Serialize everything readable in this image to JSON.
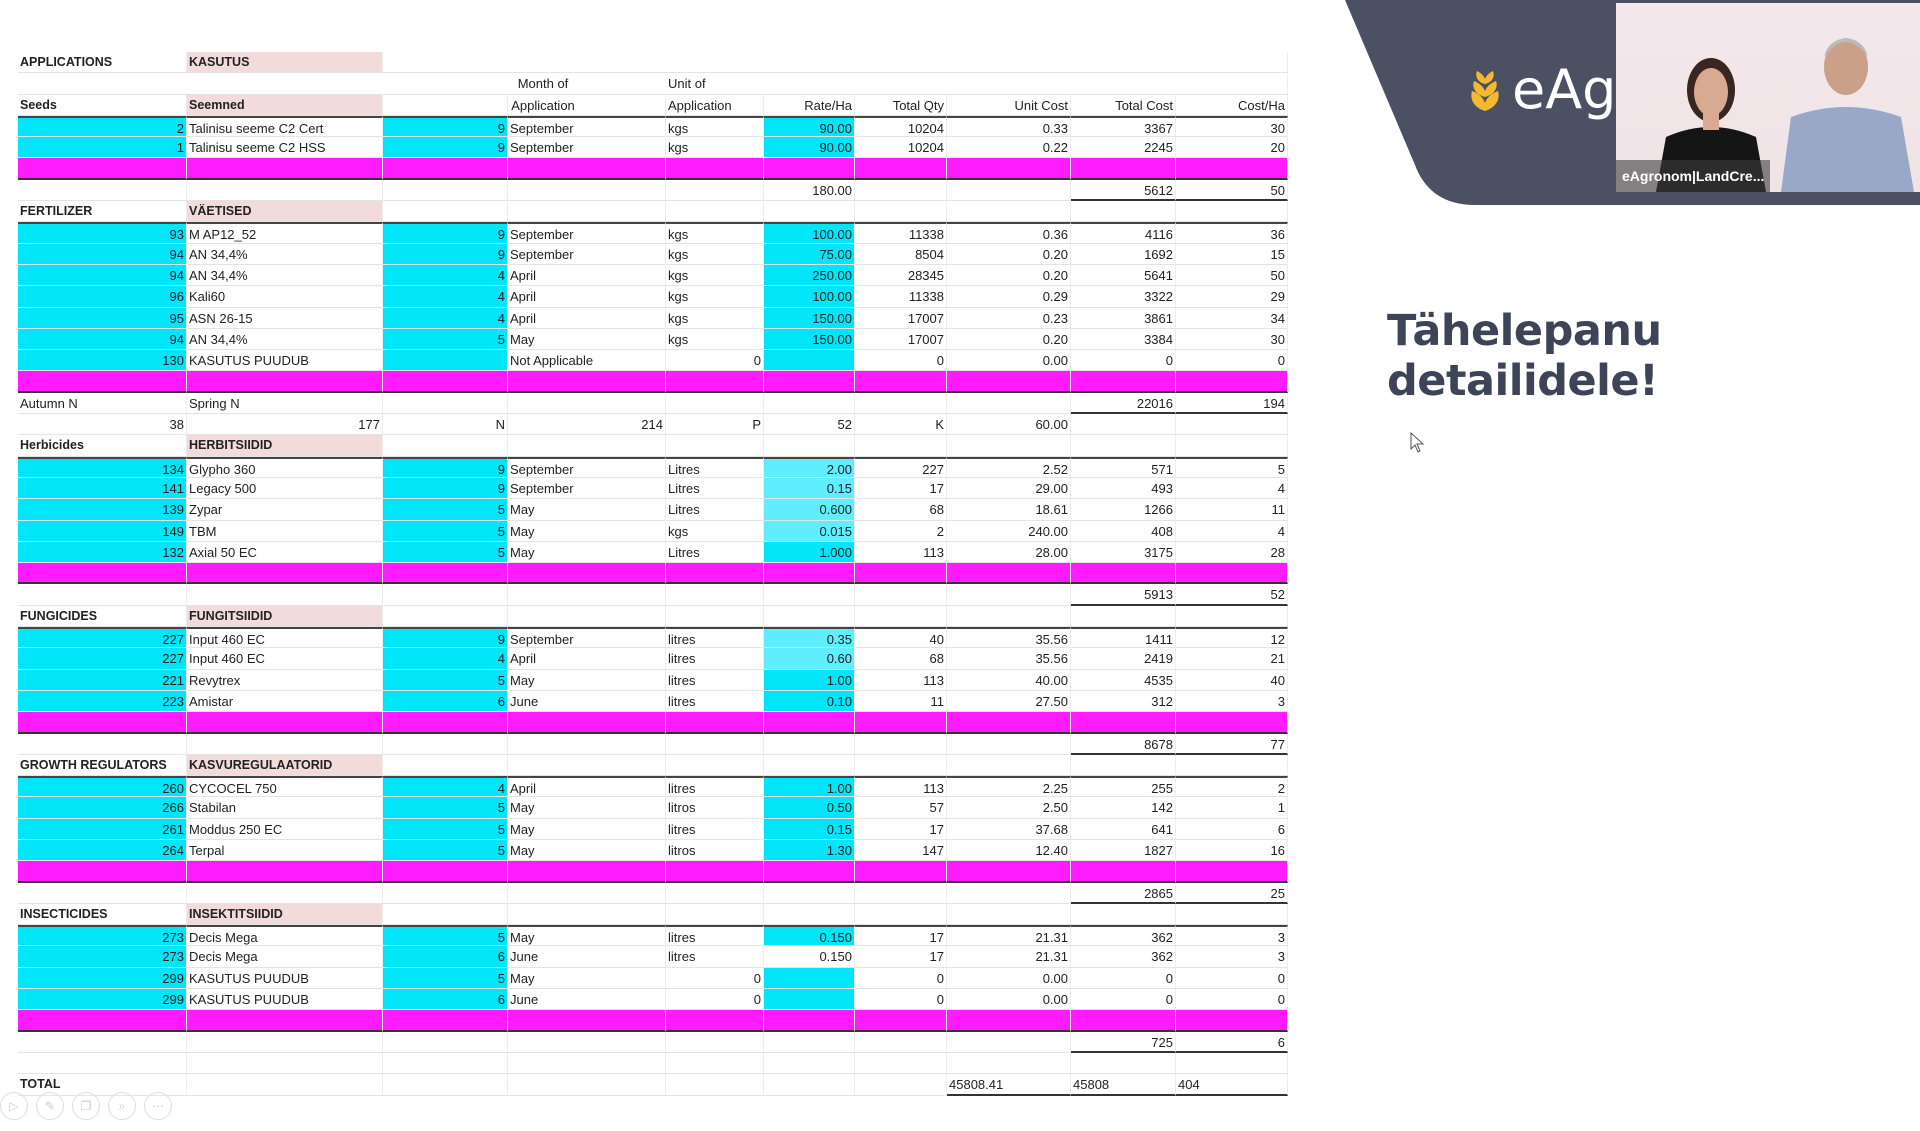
{
  "colors": {
    "cyan": "#00e5f8",
    "cyan_light": "#5eeeff",
    "magenta": "#ff1aff",
    "header_pink": "#f2dcdb",
    "brand_slate": "#4b5163",
    "logo_gold": "#f5b82e",
    "title": "#3d4457"
  },
  "slide": {
    "title": "Tähelepanu detailidele!",
    "logo_text": "eAg"
  },
  "video": {
    "label": "eAgronom|LandCre..."
  },
  "toolbar": {
    "icons": [
      "play-icon",
      "pen-icon",
      "copy-icon",
      "zoom-icon",
      "more-icon"
    ]
  },
  "header": {
    "applications": "APPLICATIONS",
    "kasutus": "KASUTUS",
    "month_of": "Month of",
    "unit_of": "Unit of",
    "seeds": "Seeds",
    "seemned": "Seemned",
    "application_month": "Application",
    "application_unit": "Application",
    "rate": "Rate/Ha",
    "total_qty": "Total Qty",
    "unit_cost": "Unit Cost",
    "total_cost": "Total Cost",
    "cost_ha": "Cost/Ha"
  },
  "table": {
    "rows": [
      {
        "type": "item",
        "first": true,
        "rate": "strong",
        "cells": [
          "2",
          "Talinisu seeme C2 Cert",
          "9",
          "September",
          "kgs",
          "90.00",
          "10204",
          "0.33",
          "3367",
          "30"
        ]
      },
      {
        "type": "item",
        "rate": "strong",
        "cells": [
          "1",
          "Talinisu seeme C2 HSS",
          "9",
          "September",
          "kgs",
          "90.00",
          "10204",
          "0.22",
          "2245",
          "20"
        ]
      },
      {
        "type": "magenta",
        "cells": []
      },
      {
        "type": "subtotal",
        "cells": [
          "",
          "",
          "",
          "",
          "",
          "180.00",
          "",
          "",
          "5612",
          "50"
        ]
      },
      {
        "type": "section",
        "cells": [
          "FERTILIZER",
          "VÄETISED"
        ]
      },
      {
        "type": "item",
        "first": true,
        "rate": "strong",
        "cells": [
          "93",
          "M AP12_52",
          "9",
          "September",
          "kgs",
          "100.00",
          "11338",
          "0.36",
          "4116",
          "36"
        ]
      },
      {
        "type": "item",
        "rate": "strong",
        "cells": [
          "94",
          "AN 34,4%",
          "9",
          "September",
          "kgs",
          "75.00",
          "8504",
          "0.20",
          "1692",
          "15"
        ]
      },
      {
        "type": "item",
        "rate": "strong",
        "cells": [
          "94",
          "AN 34,4%",
          "4",
          "April",
          "kgs",
          "250.00",
          "28345",
          "0.20",
          "5641",
          "50"
        ]
      },
      {
        "type": "item",
        "rate": "strong",
        "cells": [
          "96",
          "Kali60",
          "4",
          "April",
          "kgs",
          "100.00",
          "11338",
          "0.29",
          "3322",
          "29"
        ]
      },
      {
        "type": "item",
        "rate": "strong",
        "cells": [
          "95",
          "ASN 26-15",
          "4",
          "April",
          "kgs",
          "150.00",
          "17007",
          "0.23",
          "3861",
          "34"
        ]
      },
      {
        "type": "item",
        "rate": "strong",
        "cells": [
          "94",
          "AN 34,4%",
          "5",
          "May",
          "kgs",
          "150.00",
          "17007",
          "0.20",
          "3384",
          "30"
        ]
      },
      {
        "type": "item",
        "rate": "strong",
        "cells": [
          "130",
          "KASUTUS PUUDUB",
          "",
          "Not Applicable",
          "0",
          "",
          "0",
          "0.00",
          "0",
          "0"
        ]
      },
      {
        "type": "magenta",
        "cells": []
      },
      {
        "type": "subtotal",
        "cells": [
          "Autumn N",
          "Spring N",
          "",
          "",
          "",
          "",
          "",
          "",
          "22016",
          "194"
        ]
      },
      {
        "type": "npk",
        "cells": [
          "38",
          "177",
          "N",
          "214",
          "P",
          "52",
          "K",
          "60.00",
          "",
          ""
        ]
      },
      {
        "type": "section",
        "cells": [
          "Herbicides",
          "HERBITSIIDID"
        ]
      },
      {
        "type": "item",
        "first": true,
        "rate": "light",
        "cells": [
          "134",
          "Glypho 360",
          "9",
          "September",
          "Litres",
          "2.00",
          "227",
          "2.52",
          "571",
          "5"
        ]
      },
      {
        "type": "item",
        "rate": "light",
        "cells": [
          "141",
          "Legacy 500",
          "9",
          "September",
          "Litres",
          "0.15",
          "17",
          "29.00",
          "493",
          "4"
        ]
      },
      {
        "type": "item",
        "rate": "light",
        "cells": [
          "139",
          "Zypar",
          "5",
          "May",
          "Litres",
          "0.600",
          "68",
          "18.61",
          "1266",
          "11"
        ]
      },
      {
        "type": "item",
        "rate": "light",
        "cells": [
          "149",
          "TBM",
          "5",
          "May",
          "kgs",
          "0.015",
          "2",
          "240.00",
          "408",
          "4"
        ]
      },
      {
        "type": "item",
        "rate": "strong",
        "cells": [
          "132",
          "Axial 50 EC",
          "5",
          "May",
          "Litres",
          "1.000",
          "113",
          "28.00",
          "3175",
          "28"
        ]
      },
      {
        "type": "magenta",
        "cells": []
      },
      {
        "type": "subtotal",
        "cells": [
          "",
          "",
          "",
          "",
          "",
          "",
          "",
          "",
          "5913",
          "52"
        ]
      },
      {
        "type": "section",
        "cells": [
          "FUNGICIDES",
          "FUNGITSIIDID"
        ]
      },
      {
        "type": "item",
        "first": true,
        "rate": "light",
        "cells": [
          "227",
          "Input 460 EC",
          "9",
          "September",
          "litres",
          "0.35",
          "40",
          "35.56",
          "1411",
          "12"
        ]
      },
      {
        "type": "item",
        "rate": "light",
        "cells": [
          "227",
          "Input 460 EC",
          "4",
          "April",
          "litres",
          "0.60",
          "68",
          "35.56",
          "2419",
          "21"
        ]
      },
      {
        "type": "item",
        "rate": "strong",
        "cells": [
          "221",
          "Revytrex",
          "5",
          "May",
          "litres",
          "1.00",
          "113",
          "40.00",
          "4535",
          "40"
        ]
      },
      {
        "type": "item",
        "rate": "strong",
        "cells": [
          "223",
          "Amistar",
          "6",
          "June",
          "litres",
          "0.10",
          "11",
          "27.50",
          "312",
          "3"
        ]
      },
      {
        "type": "magenta",
        "cells": []
      },
      {
        "type": "subtotal",
        "cells": [
          "",
          "",
          "",
          "",
          "",
          "",
          "",
          "",
          "8678",
          "77"
        ]
      },
      {
        "type": "section",
        "cells": [
          "GROWTH REGULATORS",
          "KASVUREGULAATORID"
        ]
      },
      {
        "type": "item",
        "first": true,
        "rate": "strong",
        "cells": [
          "260",
          "CYCOCEL 750",
          "4",
          "April",
          "litres",
          "1.00",
          "113",
          "2.25",
          "255",
          "2"
        ]
      },
      {
        "type": "item",
        "rate": "strong",
        "cells": [
          "266",
          "Stabilan",
          "5",
          "May",
          "litros",
          "0.50",
          "57",
          "2.50",
          "142",
          "1"
        ]
      },
      {
        "type": "item",
        "rate": "strong",
        "cells": [
          "261",
          "Moddus 250 EC",
          "5",
          "May",
          "litres",
          "0.15",
          "17",
          "37.68",
          "641",
          "6"
        ]
      },
      {
        "type": "item",
        "rate": "strong",
        "cells": [
          "264",
          "Terpal",
          "5",
          "May",
          "litros",
          "1.30",
          "147",
          "12.40",
          "1827",
          "16"
        ]
      },
      {
        "type": "magenta",
        "cells": []
      },
      {
        "type": "subtotal",
        "cells": [
          "",
          "",
          "",
          "",
          "",
          "",
          "",
          "",
          "2865",
          "25"
        ]
      },
      {
        "type": "section",
        "cells": [
          "INSECTICIDES",
          "INSEKTITSIIDID"
        ]
      },
      {
        "type": "item",
        "first": true,
        "rate": "strong",
        "cells": [
          "273",
          "Decis Mega",
          "5",
          "May",
          "litres",
          "0.150",
          "17",
          "21.31",
          "362",
          "3"
        ]
      },
      {
        "type": "item",
        "rate": "none",
        "cells": [
          "273",
          "Decis Mega",
          "6",
          "June",
          "litres",
          "0.150",
          "17",
          "21.31",
          "362",
          "3"
        ]
      },
      {
        "type": "item",
        "rate": "strong",
        "cells": [
          "299",
          "KASUTUS PUUDUB",
          "5",
          "May",
          "0",
          "",
          "0",
          "0.00",
          "0",
          "0"
        ]
      },
      {
        "type": "item",
        "rate": "strong",
        "cells": [
          "299",
          "KASUTUS PUUDUB",
          "6",
          "June",
          "0",
          "",
          "0",
          "0.00",
          "0",
          "0"
        ]
      },
      {
        "type": "magenta",
        "cells": []
      },
      {
        "type": "subtotal",
        "cells": [
          "",
          "",
          "",
          "",
          "",
          "",
          "",
          "",
          "725",
          "6"
        ]
      },
      {
        "type": "blank",
        "cells": []
      },
      {
        "type": "total",
        "cells": [
          "TOTAL",
          "",
          "",
          "",
          "",
          "",
          "",
          "45808.41",
          "45808",
          "404"
        ]
      }
    ]
  }
}
